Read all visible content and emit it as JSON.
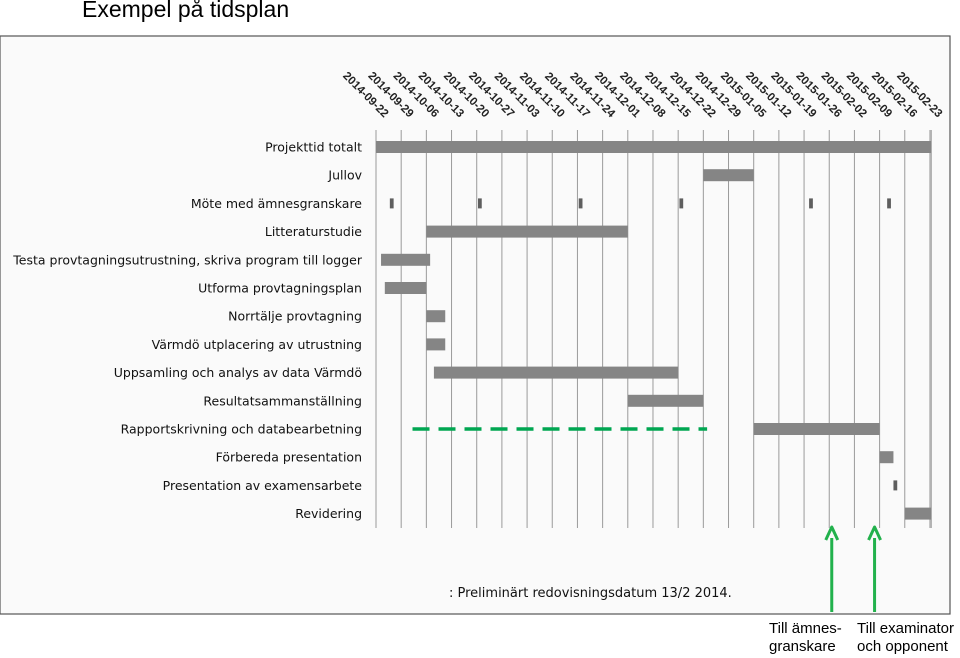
{
  "slide": {
    "title": "Exempel på tidsplan"
  },
  "chart_data": {
    "type": "gantt",
    "title": "Exempel på tidsplan",
    "dates": [
      "2014-09-22",
      "2014-09-29",
      "2014-10-06",
      "2014-10-13",
      "2014-10-20",
      "2014-10-27",
      "2014-11-03",
      "2014-11-10",
      "2014-11-17",
      "2014-11-24",
      "2014-12-01",
      "2014-12-08",
      "2014-12-15",
      "2014-12-22",
      "2014-12-29",
      "2015-01-05",
      "2015-01-12",
      "2015-01-19",
      "2015-01-26",
      "2015-02-02",
      "2015-02-09",
      "2015-02-16",
      "2015-02-23"
    ],
    "tasks": [
      {
        "name": "Projekttid totalt",
        "bars": [
          {
            "start": 0,
            "end": 22.05
          }
        ]
      },
      {
        "name": "Jullov",
        "bars": [
          {
            "start": 13,
            "end": 15
          }
        ]
      },
      {
        "name": "Möte med ämnesgranskare",
        "bars": [
          {
            "start": 0.55,
            "end": 0.7
          },
          {
            "start": 4.05,
            "end": 4.2
          },
          {
            "start": 8.05,
            "end": 8.2
          },
          {
            "start": 12.05,
            "end": 12.2
          },
          {
            "start": 17.2,
            "end": 17.35
          },
          {
            "start": 20.3,
            "end": 20.45
          }
        ]
      },
      {
        "name": "Litteraturstudie",
        "bars": [
          {
            "start": 2,
            "end": 10
          }
        ]
      },
      {
        "name": "Testa provtagningsutrustning, skriva program till logger",
        "bars": [
          {
            "start": 0.2,
            "end": 2.15
          }
        ]
      },
      {
        "name": "Utforma provtagningsplan",
        "bars": [
          {
            "start": 0.35,
            "end": 2
          }
        ]
      },
      {
        "name": "Norrtälje provtagning",
        "bars": [
          {
            "start": 2,
            "end": 2.75
          }
        ]
      },
      {
        "name": "Värmdö utplacering av utrustning",
        "bars": [
          {
            "start": 2,
            "end": 2.75
          }
        ]
      },
      {
        "name": "Uppsamling och analys av data Värmdö",
        "bars": [
          {
            "start": 2.3,
            "end": 12
          }
        ]
      },
      {
        "name": "Resultatsammanställning",
        "bars": [
          {
            "start": 10,
            "end": 13
          }
        ]
      },
      {
        "name": "Rapportskrivning och databearbetning",
        "bars": [
          {
            "start": 15,
            "end": 20
          }
        ],
        "dashed": {
          "start": 1.45,
          "end": 13.15
        }
      },
      {
        "name": "Förbereda presentation",
        "bars": [
          {
            "start": 20,
            "end": 20.55
          }
        ]
      },
      {
        "name": "Presentation av examensarbete",
        "bars": [
          {
            "start": 20.55,
            "end": 20.7
          }
        ]
      },
      {
        "name": "Revidering",
        "bars": [
          {
            "start": 21,
            "end": 22.05
          }
        ]
      }
    ],
    "footnote": ": Preliminärt redovisningsdatum 13/2 2014.",
    "markers": [
      {
        "at": 18.1,
        "lines": [
          "Till ämnes-",
          "granskare"
        ]
      },
      {
        "at": 19.8,
        "lines": [
          "Till examinator",
          "och opponent"
        ]
      }
    ],
    "colors": {
      "bar": "#858585",
      "bar_dark": "#5e5e5e",
      "grid": "#9a9a9a",
      "frame": "#555555",
      "dash": "#00a651",
      "arrow": "#22b14c"
    }
  }
}
